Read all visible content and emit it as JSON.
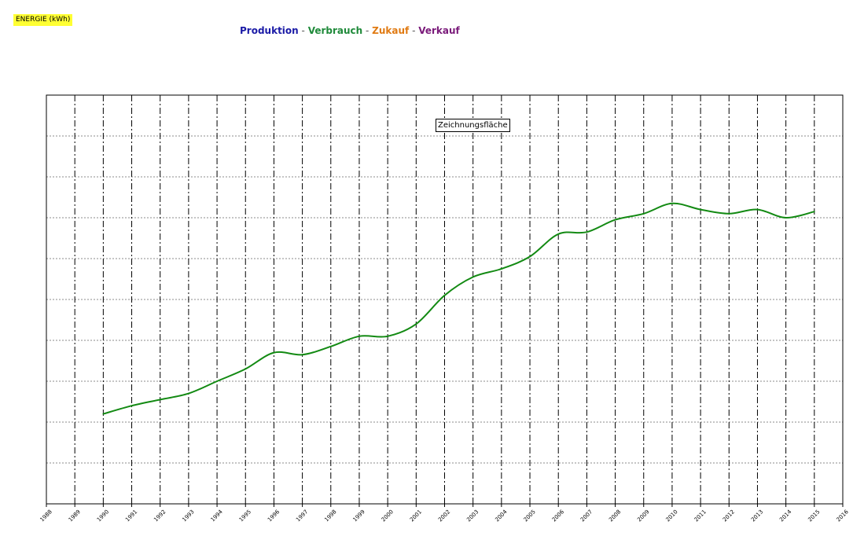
{
  "chart_data": {
    "type": "line",
    "unit_label": "ENERGIE (kWh)",
    "legend": [
      {
        "name": "Produktion",
        "color": "#1a1aa6"
      },
      {
        "name": "Verbrauch",
        "color": "#1f8a3a"
      },
      {
        "name": "Zukauf",
        "color": "#e07a12"
      },
      {
        "name": "Verkauf",
        "color": "#7a1a7a"
      }
    ],
    "legend_separator": " - ",
    "plot_area_label": "Zeichnungsfläche",
    "xlabel": "",
    "ylabel": "",
    "x_ticks": [
      "1988",
      "1989",
      "1990",
      "1991",
      "1992",
      "1993",
      "1994",
      "1995",
      "1996",
      "1997",
      "1998",
      "1999",
      "2000",
      "2001",
      "2002",
      "2003",
      "2004",
      "2005",
      "2006",
      "2007",
      "2008",
      "2009",
      "2010",
      "2011",
      "2012",
      "2013",
      "2014",
      "2015",
      "2016"
    ],
    "xlim": [
      1988,
      2016
    ],
    "ylim": [
      0,
      10
    ],
    "y_gridlines": 10,
    "grid": true,
    "series": [
      {
        "color": "#138a13",
        "x": [
          1990,
          1991,
          1992,
          1993,
          1994,
          1995,
          1996,
          1997,
          1998,
          1999,
          2000,
          2001,
          2002,
          2003,
          2004,
          2005,
          2006,
          2007,
          2008,
          2009,
          2010,
          2011,
          2012,
          2013,
          2014,
          2015
        ],
        "values": [
          2.2,
          2.4,
          2.55,
          2.7,
          3.0,
          3.3,
          3.7,
          3.65,
          3.85,
          4.1,
          4.1,
          4.4,
          5.1,
          5.55,
          5.75,
          6.05,
          6.6,
          6.65,
          6.95,
          7.1,
          7.35,
          7.2,
          7.1,
          7.2,
          7.0,
          7.15
        ]
      }
    ]
  }
}
